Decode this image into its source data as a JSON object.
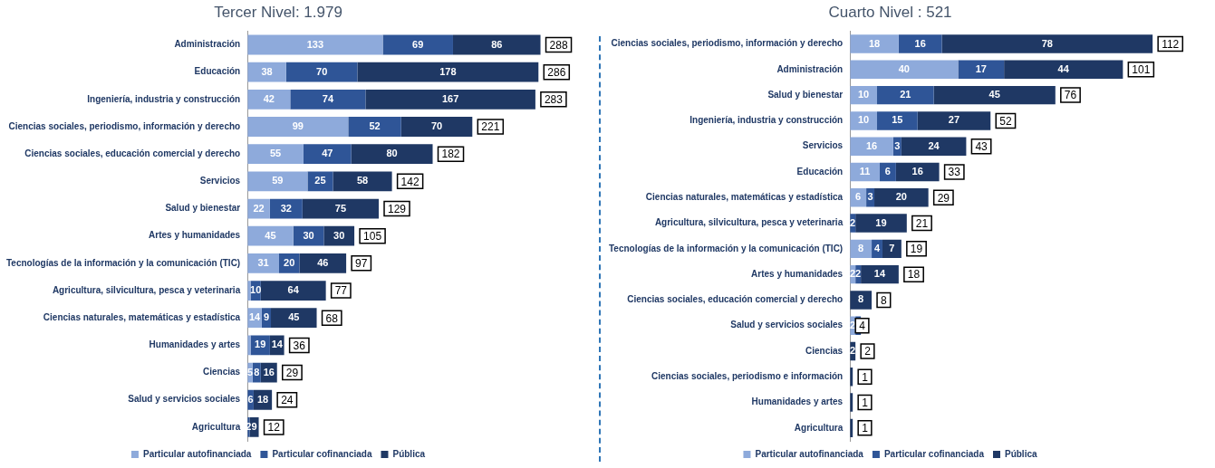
{
  "chart_data": [
    {
      "type": "bar",
      "orientation": "horizontal",
      "stacked": true,
      "title": "Tercer Nivel: 1.979",
      "tick_labels": "y",
      "grid": false,
      "legend": "bottom",
      "data_labels": true,
      "categories": [
        "Administración",
        "Educación",
        "Ingeniería, industria y construcción",
        "Ciencias sociales, periodismo, información y derecho",
        "Ciencias sociales, educación comercial y derecho",
        "Servicios",
        "Salud y bienestar",
        "Artes y humanidades",
        "Tecnologías de la información y la comunicación (TIC)",
        "Agricultura, silvicultura, pesca y veterinaria",
        "Ciencias naturales, matemáticas y estadística",
        "Humanidades y artes",
        "Ciencias",
        "Salud y servicios sociales",
        "Agricultura"
      ],
      "series": [
        {
          "name": "Particular autofinanciada",
          "color": "#8eaadb",
          "values": [
            133,
            38,
            42,
            99,
            55,
            59,
            22,
            45,
            31,
            3,
            14,
            3,
            5,
            null,
            null
          ],
          "value_labels": [
            "133",
            "38",
            "42",
            "99",
            "55",
            "59",
            "22",
            "45",
            "31",
            null,
            "14",
            null,
            "5",
            null,
            null
          ]
        },
        {
          "name": "Particular cofinanciada",
          "color": "#2f5597",
          "values": [
            69,
            70,
            74,
            52,
            47,
            25,
            32,
            30,
            20,
            10,
            9,
            19,
            8,
            6,
            2
          ]
        },
        {
          "name": "Pública",
          "color": "#1f3864",
          "values": [
            86,
            178,
            167,
            70,
            80,
            58,
            75,
            30,
            46,
            64,
            45,
            14,
            16,
            18,
            9
          ]
        }
      ],
      "totals": [
        "288",
        "286",
        "283",
        "221",
        "182",
        "142",
        "129",
        "105",
        "97",
        "77",
        "68",
        "36",
        "29",
        "24",
        "12"
      ]
    },
    {
      "type": "bar",
      "orientation": "horizontal",
      "stacked": true,
      "title": "Cuarto Nivel : 521",
      "tick_labels": "y",
      "grid": false,
      "legend": "bottom",
      "data_labels": true,
      "categories": [
        "Ciencias sociales, periodismo, información y derecho",
        "Administración",
        "Salud y bienestar",
        "Ingeniería, industria y construcción",
        "Servicios",
        "Educación",
        "Ciencias naturales, matemáticas y estadística",
        "Agricultura, silvicultura, pesca y veterinaria",
        "Tecnologías de la información y la comunicación (TIC)",
        "Artes y humanidades",
        "Ciencias sociales, educación comercial y derecho",
        "Salud y servicios sociales",
        "Ciencias",
        "Ciencias sociales, periodismo e información",
        "Humanidades y artes",
        "Agricultura"
      ],
      "series": [
        {
          "name": "Particular autofinanciada",
          "color": "#8eaadb",
          "values": [
            18,
            40,
            10,
            10,
            16,
            11,
            6,
            null,
            8,
            2,
            null,
            2,
            null,
            null,
            null,
            null
          ]
        },
        {
          "name": "Particular cofinanciada",
          "color": "#2f5597",
          "values": [
            16,
            17,
            21,
            15,
            3,
            6,
            3,
            2,
            4,
            2,
            null,
            2,
            null,
            null,
            null,
            null
          ]
        },
        {
          "name": "Pública",
          "color": "#1f3864",
          "values": [
            78,
            44,
            45,
            27,
            24,
            16,
            20,
            19,
            7,
            14,
            8,
            null,
            2,
            1,
            1,
            1
          ],
          "value_labels": [
            "78",
            "44",
            "45",
            "27",
            "24",
            "16",
            "20",
            "19",
            "7",
            "14",
            "8",
            null,
            "2",
            null,
            null,
            null
          ]
        }
      ],
      "totals": [
        "112",
        "101",
        "76",
        "52",
        "43",
        "33",
        "29",
        "21",
        "19",
        "18",
        "8",
        "4",
        "2",
        "1",
        "1",
        "1"
      ]
    }
  ]
}
